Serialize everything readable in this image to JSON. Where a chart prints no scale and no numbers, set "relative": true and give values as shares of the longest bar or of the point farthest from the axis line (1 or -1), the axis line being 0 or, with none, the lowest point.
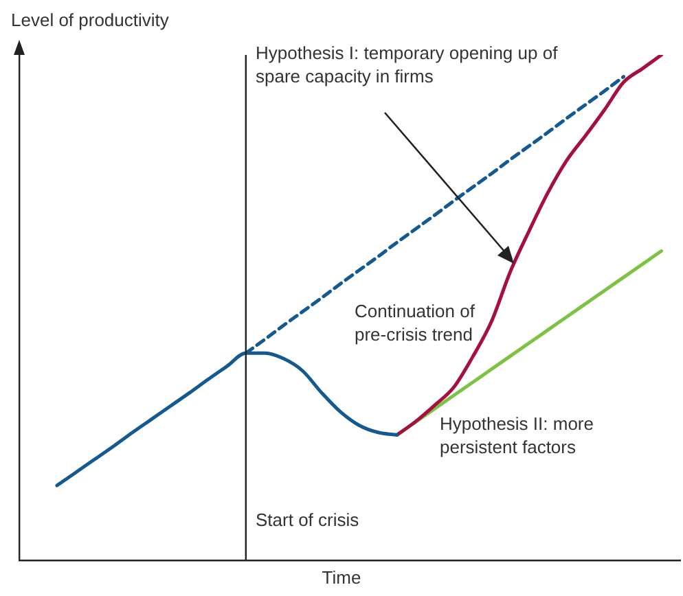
{
  "chart_data": {
    "type": "line",
    "relative": true,
    "tick_labels": false,
    "xlabel": "Time",
    "ylabel": "Level of productivity",
    "categories": [
      null,
      null,
      null,
      null,
      null,
      null,
      null,
      null,
      null,
      null,
      null,
      null,
      null,
      null,
      null,
      null,
      null,
      null,
      null,
      null,
      null,
      null,
      null,
      null,
      null,
      null,
      null,
      null,
      null,
      null,
      null,
      null,
      null,
      null,
      null,
      null
    ],
    "series": [
      {
        "color": "#14598f",
        "line_style": "solid",
        "values": [
          null,
          null,
          0.148,
          0.174,
          0.2,
          0.226,
          0.253,
          0.279,
          0.305,
          0.331,
          0.358,
          0.384,
          0.41,
          0.41,
          0.399,
          0.375,
          0.332,
          0.294,
          0.267,
          0.253,
          0.248,
          null,
          null,
          null,
          null,
          null,
          null,
          null,
          null,
          null,
          null,
          null,
          null,
          null,
          null,
          null
        ]
      },
      {
        "color": "#14598f",
        "line_style": "dashed",
        "values": [
          null,
          null,
          null,
          null,
          null,
          null,
          null,
          null,
          null,
          null,
          null,
          null,
          0.41,
          0.437,
          0.465,
          0.492,
          0.519,
          0.547,
          0.574,
          0.601,
          0.629,
          0.656,
          0.683,
          0.711,
          0.738,
          0.765,
          0.793,
          0.82,
          0.847,
          0.875,
          0.902,
          0.929,
          0.957,
          null,
          null,
          null
        ]
      },
      {
        "color": "#a5103f",
        "line_style": "solid",
        "values": [
          null,
          null,
          null,
          null,
          null,
          null,
          null,
          null,
          null,
          null,
          null,
          null,
          null,
          null,
          null,
          null,
          null,
          null,
          null,
          null,
          0.248,
          0.275,
          0.307,
          0.342,
          0.402,
          0.472,
          0.571,
          0.652,
          0.728,
          0.792,
          0.841,
          0.892,
          0.946,
          0.973,
          1.0,
          null
        ]
      },
      {
        "color": "#7dc242",
        "line_style": "solid",
        "values": [
          null,
          null,
          null,
          null,
          null,
          null,
          null,
          null,
          null,
          null,
          null,
          null,
          null,
          null,
          null,
          null,
          null,
          null,
          null,
          null,
          0.248,
          0.274,
          0.3,
          0.326,
          0.352,
          0.378,
          0.404,
          0.43,
          0.456,
          0.482,
          0.508,
          0.534,
          0.56,
          0.586,
          0.612,
          null
        ]
      }
    ],
    "annotations": [
      "Hypothesis I:  temporary opening up of spare capacity in firms",
      "Continuation of pre-crisis trend",
      "Hypothesis II: more persistent factors",
      "Start of crisis"
    ]
  }
}
